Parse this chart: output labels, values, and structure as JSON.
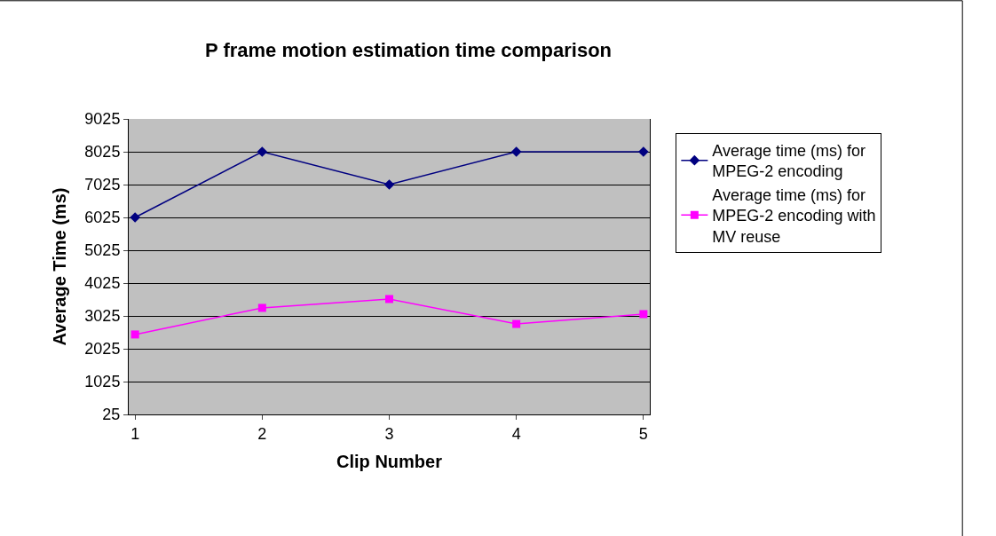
{
  "chart_data": {
    "type": "line",
    "title": "P frame motion estimation time comparison",
    "xlabel": "Clip Number",
    "ylabel": "Average Time (ms)",
    "categories": [
      "1",
      "2",
      "3",
      "4",
      "5"
    ],
    "series": [
      {
        "name": "Average time (ms) for MPEG-2 encoding",
        "color": "#000080",
        "marker": "diamond",
        "values": [
          6025,
          8025,
          7025,
          8025,
          8025
        ]
      },
      {
        "name": "Average time (ms) for MPEG-2 encoding with MV reuse",
        "color": "#ff00ff",
        "marker": "square",
        "values": [
          2460,
          3270,
          3540,
          2780,
          3080
        ]
      }
    ],
    "ylim": [
      25,
      9025
    ],
    "yticks": [
      25,
      1025,
      2025,
      3025,
      4025,
      5025,
      6025,
      7025,
      8025,
      9025
    ],
    "grid": "y",
    "legend": "right",
    "line_style": "solid"
  }
}
